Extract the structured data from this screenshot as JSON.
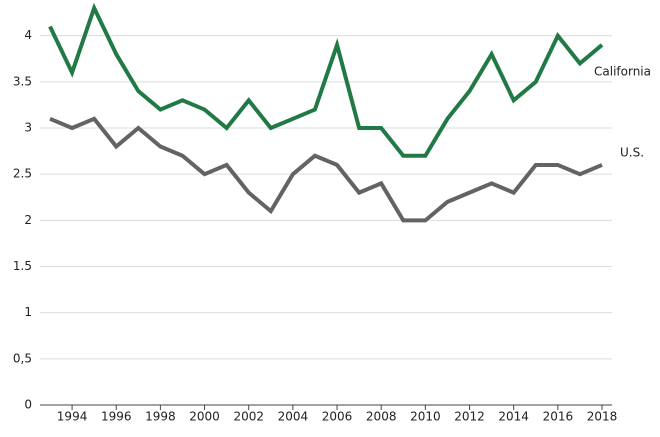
{
  "chart_data": {
    "type": "line",
    "x": [
      1993,
      1994,
      1995,
      1996,
      1997,
      1998,
      1999,
      2000,
      2001,
      2002,
      2003,
      2004,
      2005,
      2006,
      2007,
      2008,
      2009,
      2010,
      2011,
      2012,
      2013,
      2014,
      2015,
      2016,
      2017,
      2018
    ],
    "series": [
      {
        "name": "California",
        "color": "#217a45",
        "values": [
          4.1,
          3.6,
          4.3,
          3.8,
          3.4,
          3.2,
          3.3,
          3.2,
          3.0,
          3.3,
          3.0,
          3.1,
          3.2,
          3.9,
          3.0,
          3.0,
          2.7,
          2.7,
          3.1,
          3.4,
          3.8,
          3.3,
          3.5,
          4.0,
          3.7,
          3.9
        ]
      },
      {
        "name": "U.S.",
        "color": "#636363",
        "values": [
          3.1,
          3.0,
          3.1,
          2.8,
          3.0,
          2.8,
          2.7,
          2.5,
          2.6,
          2.3,
          2.1,
          2.5,
          2.7,
          2.6,
          2.3,
          2.4,
          2.0,
          2.0,
          2.2,
          2.3,
          2.4,
          2.3,
          2.6,
          2.6,
          2.5,
          2.6
        ]
      }
    ],
    "xlim": [
      1993,
      2018
    ],
    "xticks": [
      1994,
      1996,
      1998,
      2000,
      2002,
      2004,
      2006,
      2008,
      2010,
      2012,
      2014,
      2016,
      2018
    ],
    "ylim": [
      0,
      4.3
    ],
    "yticks": [
      0,
      {
        "value": 0.5,
        "label": "0,5"
      },
      1,
      1.5,
      2,
      2.5,
      3,
      3.5,
      4
    ],
    "grid": true
  }
}
